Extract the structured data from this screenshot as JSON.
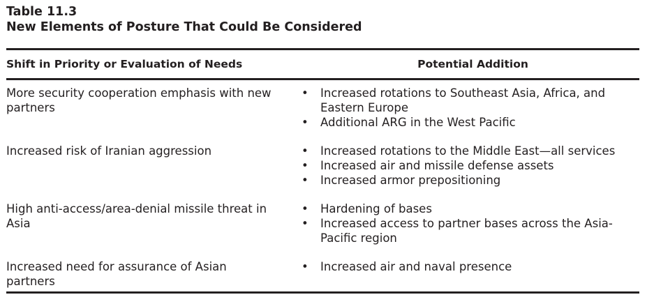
{
  "caption": {
    "table_number": "Table 11.3",
    "title": "New Elements of Posture That Could Be Considered"
  },
  "table": {
    "headers": {
      "left": "Shift in Priority or Evaluation of Needs",
      "right": "Potential Addition"
    },
    "rows": [
      {
        "shift": "More security cooperation emphasis with new partners",
        "additions": [
          "Increased rotations to Southeast Asia, Africa, and Eastern Europe",
          "Additional ARG in the West Pacific"
        ]
      },
      {
        "shift": "Increased risk of Iranian aggression",
        "additions": [
          "Increased rotations to the Middle East—all services",
          "Increased air and missile defense assets",
          "Increased armor prepositioning"
        ]
      },
      {
        "shift": "High anti-access/area-denial missile threat in Asia",
        "additions": [
          "Hardening of bases",
          "Increased access to partner bases across the Asia-Pacific region"
        ]
      },
      {
        "shift": "Increased need for assurance of Asian partners",
        "additions": [
          "Increased air and naval presence"
        ]
      }
    ]
  }
}
